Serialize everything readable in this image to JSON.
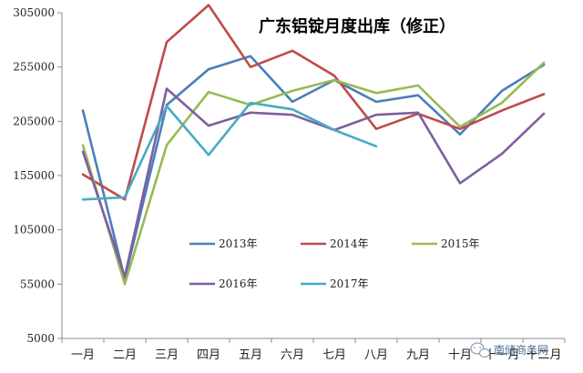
{
  "chart_data": {
    "type": "line",
    "title": "广东铝锭月度出库（修正）",
    "xlabel": "",
    "ylabel": "",
    "categories": [
      "一月",
      "二月",
      "三月",
      "四月",
      "五月",
      "六月",
      "七月",
      "八月",
      "九月",
      "十月",
      "十一月",
      "十二月"
    ],
    "ylim": [
      5000,
      305000
    ],
    "yticks": [
      5000,
      55000,
      105000,
      155000,
      205000,
      255000,
      305000
    ],
    "grid": false,
    "legend_position": "lower-middle",
    "series": [
      {
        "name": "2013年",
        "color": "#4a7ebb",
        "values": [
          215000,
          60000,
          220000,
          253000,
          265000,
          223000,
          243000,
          223000,
          229000,
          193000,
          233000,
          257000
        ]
      },
      {
        "name": "2014年",
        "color": "#be4b48",
        "values": [
          156000,
          133000,
          278000,
          312000,
          255000,
          270000,
          247000,
          198000,
          212000,
          198000,
          215000,
          230000
        ]
      },
      {
        "name": "2015年",
        "color": "#98b954",
        "values": [
          183000,
          55000,
          183000,
          232000,
          220000,
          233000,
          243000,
          231000,
          238000,
          200000,
          222000,
          259000
        ]
      },
      {
        "name": "2016年",
        "color": "#7d60a0",
        "values": [
          177000,
          62000,
          235000,
          201000,
          213000,
          211000,
          197000,
          211000,
          213000,
          148000,
          175000,
          212000
        ]
      },
      {
        "name": "2017年",
        "color": "#46aac5",
        "values": [
          133000,
          135000,
          219000,
          174000,
          222000,
          216000,
          197000,
          182000,
          null,
          null,
          null,
          null
        ]
      }
    ]
  },
  "watermark": {
    "text": "南储商务网",
    "icon": "wechat-icon"
  }
}
